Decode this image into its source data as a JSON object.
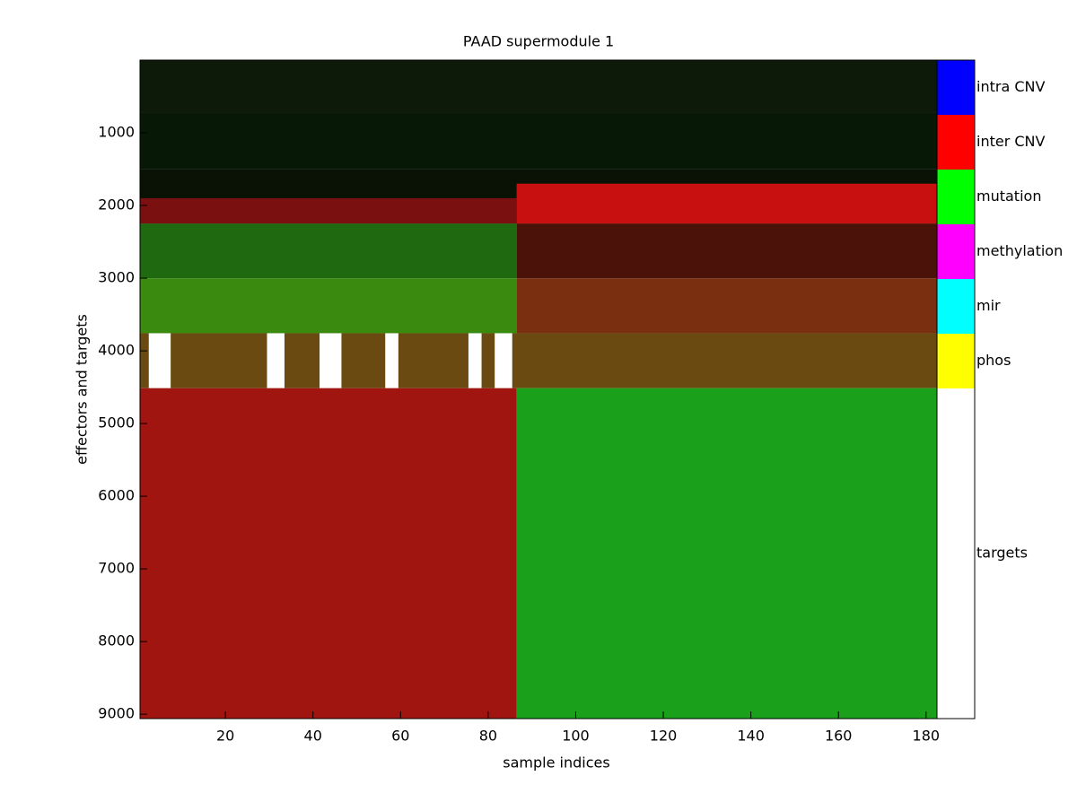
{
  "chart_data": {
    "type": "heatmap",
    "title": "PAAD supermodule 1",
    "x_label": "sample indices",
    "y_label": "effectors and targets",
    "xlim": [
      0.5,
      182.5
    ],
    "xticks": [
      20,
      40,
      60,
      80,
      100,
      120,
      140,
      160,
      180
    ],
    "ylim": [
      0,
      9060
    ],
    "yticks": [
      1000,
      2000,
      3000,
      4000,
      5000,
      6000,
      7000,
      8000,
      9000
    ],
    "y_reversed": true,
    "regions": [
      {
        "x": [
          0.5,
          182.5
        ],
        "y": [
          0,
          728
        ],
        "color": "#0d1a09"
      },
      {
        "x": [
          0.5,
          182.5
        ],
        "y": [
          728,
          1495
        ],
        "color": "#071806"
      },
      {
        "x": [
          0.5,
          182.5
        ],
        "y": [
          1495,
          2250
        ],
        "color": "#0a1205"
      },
      {
        "x": [
          86.5,
          182.5
        ],
        "y": [
          1700,
          2250
        ],
        "color": "#c81010"
      },
      {
        "x": [
          0.5,
          86.5
        ],
        "y": [
          1900,
          2250
        ],
        "color": "#7a1010"
      },
      {
        "x": [
          0.5,
          86.5
        ],
        "y": [
          2250,
          3003
        ],
        "color": "#1f6a10"
      },
      {
        "x": [
          86.5,
          182.5
        ],
        "y": [
          2250,
          3003
        ],
        "color": "#4a1208"
      },
      {
        "x": [
          0.5,
          86.5
        ],
        "y": [
          3003,
          3758
        ],
        "color": "#3a8a10"
      },
      {
        "x": [
          86.5,
          182.5
        ],
        "y": [
          3003,
          3758
        ],
        "color": "#7a3010"
      },
      {
        "x": [
          0.5,
          182.5
        ],
        "y": [
          3758,
          4514
        ],
        "color": "#6a4a10"
      },
      {
        "x": [
          2.5,
          7.5
        ],
        "y": [
          3758,
          4514
        ],
        "color": "#ffffff"
      },
      {
        "x": [
          29.5,
          33.5
        ],
        "y": [
          3758,
          4514
        ],
        "color": "#ffffff"
      },
      {
        "x": [
          41.5,
          46.5
        ],
        "y": [
          3758,
          4514
        ],
        "color": "#ffffff"
      },
      {
        "x": [
          56.5,
          59.5
        ],
        "y": [
          3758,
          4514
        ],
        "color": "#ffffff"
      },
      {
        "x": [
          75.5,
          78.5
        ],
        "y": [
          3758,
          4514
        ],
        "color": "#ffffff"
      },
      {
        "x": [
          81.5,
          85.5
        ],
        "y": [
          3758,
          4514
        ],
        "color": "#ffffff"
      },
      {
        "x": [
          0.5,
          86.5
        ],
        "y": [
          4514,
          9060
        ],
        "color": "#a01510"
      },
      {
        "x": [
          86.5,
          182.5
        ],
        "y": [
          4514,
          9060
        ],
        "color": "#1aa01a"
      }
    ],
    "legend": [
      {
        "name": "intra CNV",
        "color": "#0000ff"
      },
      {
        "name": "inter CNV",
        "color": "#ff0000"
      },
      {
        "name": "mutation",
        "color": "#00ff00"
      },
      {
        "name": "methylation",
        "color": "#ff00ff"
      },
      {
        "name": "mir",
        "color": "#00ffff"
      },
      {
        "name": "phos",
        "color": "#ffff00"
      },
      {
        "name": "targets",
        "color": "#ffffff"
      }
    ]
  }
}
